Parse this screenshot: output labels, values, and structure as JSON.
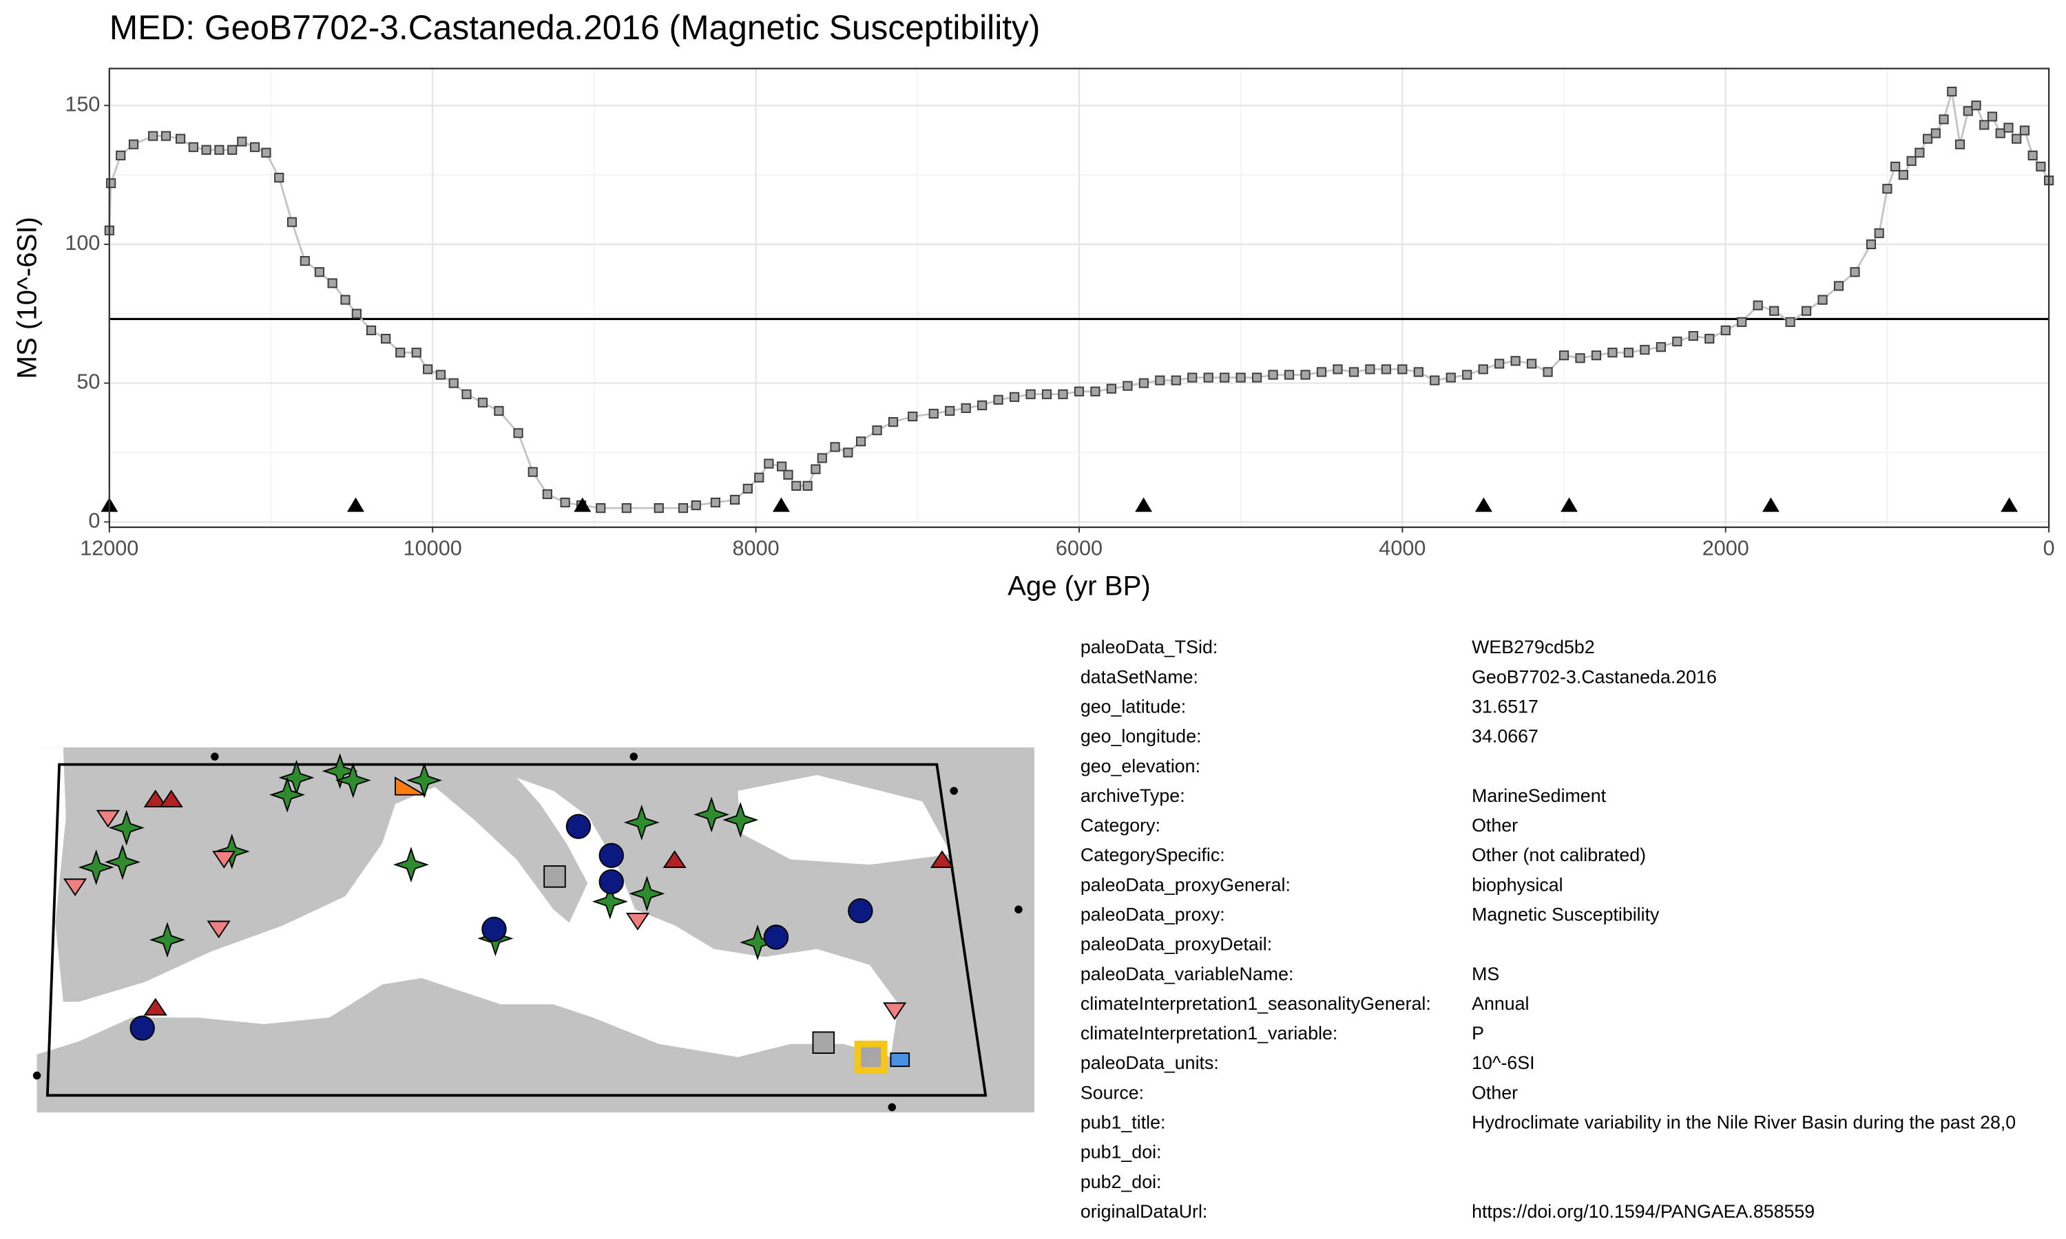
{
  "chart_data": {
    "type": "line",
    "title": "MED: GeoB7702-3.Castaneda.2016 (Magnetic Susceptibility)",
    "x_label": "Age (yr BP)",
    "y_label": "MS (10^-6SI)",
    "xlim": [
      12000,
      0
    ],
    "ylim": [
      -1.9,
      163.3
    ],
    "xticks": [
      12000,
      10000,
      8000,
      6000,
      4000,
      2000,
      0
    ],
    "yticks": [
      0,
      50,
      100,
      150
    ],
    "xminor": [
      11000,
      9000,
      7000,
      5000,
      3000,
      1000
    ],
    "yminor": [
      25,
      75,
      125
    ],
    "grid": true,
    "reference_line": 73.1,
    "series": [
      {
        "marker": "square",
        "color": "#a6a6a6",
        "line_color": "#c4c4c4",
        "x": [
          12000,
          11990,
          11930,
          11850,
          11730,
          11650,
          11560,
          11480,
          11400,
          11320,
          11240,
          11180,
          11100,
          11030,
          10950,
          10870,
          10790,
          10700,
          10620,
          10540,
          10470,
          10380,
          10290,
          10200,
          10100,
          10030,
          9950,
          9870,
          9790,
          9690,
          9590,
          9470,
          9380,
          9290,
          9180,
          9080,
          8960,
          8800,
          8600,
          8450,
          8370,
          8250,
          8130,
          8050,
          7980,
          7920,
          7840,
          7800,
          7750,
          7680,
          7630,
          7590,
          7510,
          7430,
          7350,
          7250,
          7150,
          7030,
          6900,
          6800,
          6700,
          6600,
          6500,
          6400,
          6300,
          6200,
          6100,
          6000,
          5900,
          5800,
          5700,
          5600,
          5500,
          5400,
          5300,
          5200,
          5100,
          5000,
          4900,
          4800,
          4700,
          4600,
          4500,
          4400,
          4300,
          4200,
          4100,
          4000,
          3900,
          3800,
          3700,
          3600,
          3500,
          3400,
          3300,
          3200,
          3100,
          3000,
          2900,
          2800,
          2700,
          2600,
          2500,
          2400,
          2300,
          2200,
          2100,
          2000,
          1900,
          1800,
          1700,
          1600,
          1500,
          1400,
          1300,
          1200,
          1100,
          1050,
          1000,
          950,
          900,
          850,
          800,
          750,
          700,
          650,
          600,
          550,
          500,
          450,
          400,
          350,
          300,
          250,
          200,
          150,
          100,
          50,
          0
        ],
        "values": [
          105,
          122,
          132,
          136,
          139,
          139,
          138,
          135,
          134,
          134,
          134,
          137,
          135,
          133,
          124,
          108,
          94,
          90,
          86,
          80,
          75,
          69,
          66,
          61,
          61,
          55,
          53,
          50,
          46,
          43,
          40,
          32,
          18,
          10,
          7,
          6,
          5,
          5,
          5,
          5,
          6,
          7,
          8,
          12,
          16,
          21,
          20,
          17,
          13,
          13,
          19,
          23,
          27,
          25,
          29,
          33,
          36,
          38,
          39,
          40,
          41,
          42,
          44,
          45,
          46,
          46,
          46,
          47,
          47,
          48,
          49,
          50,
          51,
          51,
          52,
          52,
          52,
          52,
          52,
          53,
          53,
          53,
          54,
          55,
          54,
          55,
          55,
          55,
          54,
          51,
          52,
          53,
          55,
          57,
          58,
          57,
          54,
          60,
          59,
          60,
          61,
          61,
          62,
          63,
          65,
          67,
          66,
          69,
          72,
          78,
          76,
          72,
          76,
          80,
          85,
          90,
          100,
          104,
          120,
          128,
          125,
          130,
          133,
          138,
          140,
          145,
          155,
          136,
          148,
          150,
          143,
          146,
          140,
          142,
          138,
          141,
          132,
          128,
          123
        ]
      },
      {
        "marker": "triangle",
        "color": "#000000",
        "x": [
          12000,
          10476,
          9073,
          7843,
          5601,
          3497,
          2968,
          1720,
          245
        ],
        "values": [
          6,
          6,
          6,
          6,
          6,
          6,
          6,
          6,
          6
        ]
      }
    ]
  },
  "metadata": [
    {
      "key": "paleoData_TSid:",
      "value": "WEB279cd5b2"
    },
    {
      "key": "dataSetName:",
      "value": "GeoB7702-3.Castaneda.2016"
    },
    {
      "key": "geo_latitude:",
      "value": "31.6517"
    },
    {
      "key": "geo_longitude:",
      "value": "34.0667"
    },
    {
      "key": "geo_elevation:"
    },
    {
      "key": "archiveType:",
      "value": "MarineSediment"
    },
    {
      "key": "Category:",
      "value": "Other"
    },
    {
      "key": "CategorySpecific:",
      "value": "Other (not calibrated)"
    },
    {
      "key": "paleoData_proxyGeneral:",
      "value": "biophysical"
    },
    {
      "key": "paleoData_proxy:",
      "value": "Magnetic Susceptibility"
    },
    {
      "key": "paleoData_proxyDetail:"
    },
    {
      "key": "paleoData_variableName:",
      "value": "MS"
    },
    {
      "key": "climateInterpretation1_seasonalityGeneral:",
      "value": "Annual"
    },
    {
      "key": "climateInterpretation1_variable:",
      "value": "P"
    },
    {
      "key": "paleoData_units:",
      "value": "10^-6SI"
    },
    {
      "key": "Source:",
      "value": "Other"
    },
    {
      "key": "pub1_title:",
      "value": "Hydroclimate variability in the Nile River Basin during the past 28,0"
    },
    {
      "key": "pub1_doi:"
    },
    {
      "key": "pub2_doi:"
    },
    {
      "key": "originalDataUrl:",
      "value": "https://doi.org/10.1594/PANGAEA.858559"
    }
  ]
}
